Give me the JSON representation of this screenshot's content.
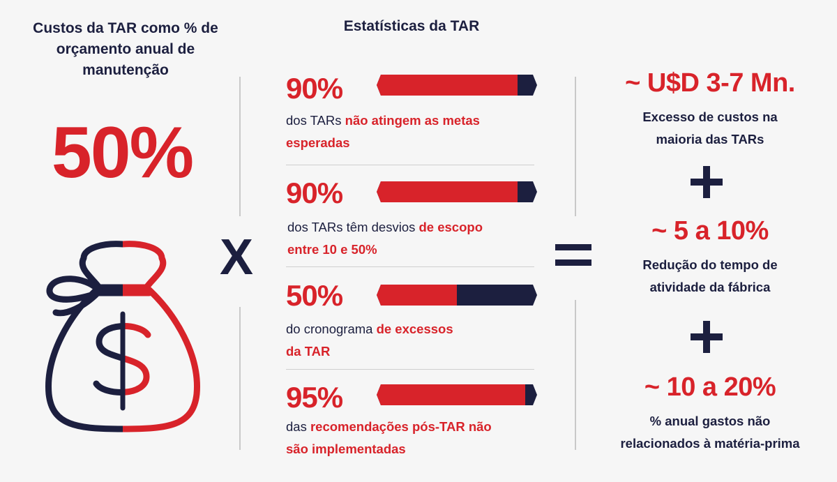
{
  "left": {
    "title_lines": [
      "Custos da TAR como % de",
      "orçamento anual de",
      "manutenção"
    ],
    "big_value": "50%"
  },
  "operators": {
    "times": "X"
  },
  "middle": {
    "title": "Estatísticas da TAR",
    "stats": [
      {
        "percent": "90%",
        "fraction": 0.9,
        "pre": "dos TARs ",
        "hl": "não atingem as metas esperadas",
        "line2_pre": "",
        "line2_hl": ""
      },
      {
        "percent": "90%",
        "fraction": 0.9,
        "pre": "dos TARs têm desvios ",
        "hl": "de escopo",
        "line2_pre": "",
        "line2_hl": "entre 10 e 50%"
      },
      {
        "percent": "50%",
        "fraction": 0.5,
        "pre": "do cronograma ",
        "hl": "de excessos",
        "line2_pre": "",
        "line2_hl": "da TAR"
      },
      {
        "percent": "95%",
        "fraction": 0.95,
        "pre": "das ",
        "hl": "recomendações pós-TAR não",
        "line2_pre": "",
        "line2_hl": "são implementadas"
      }
    ]
  },
  "right": {
    "items": [
      {
        "value": "~ U$D 3-7 Mn.",
        "desc_lines": [
          "Excesso de custos na",
          "maioria das TARs"
        ]
      },
      {
        "value": "~ 5 a 10%",
        "desc_lines": [
          "Redução do tempo de",
          "atividade da fábrica"
        ]
      },
      {
        "value": "~ 10 a 20%",
        "desc_lines": [
          "% anual gastos não",
          "relacionados à matéria-prima"
        ]
      }
    ]
  },
  "colors": {
    "red": "#d8232a",
    "navy": "#1c1f3f",
    "background": "#f6f6f6"
  }
}
